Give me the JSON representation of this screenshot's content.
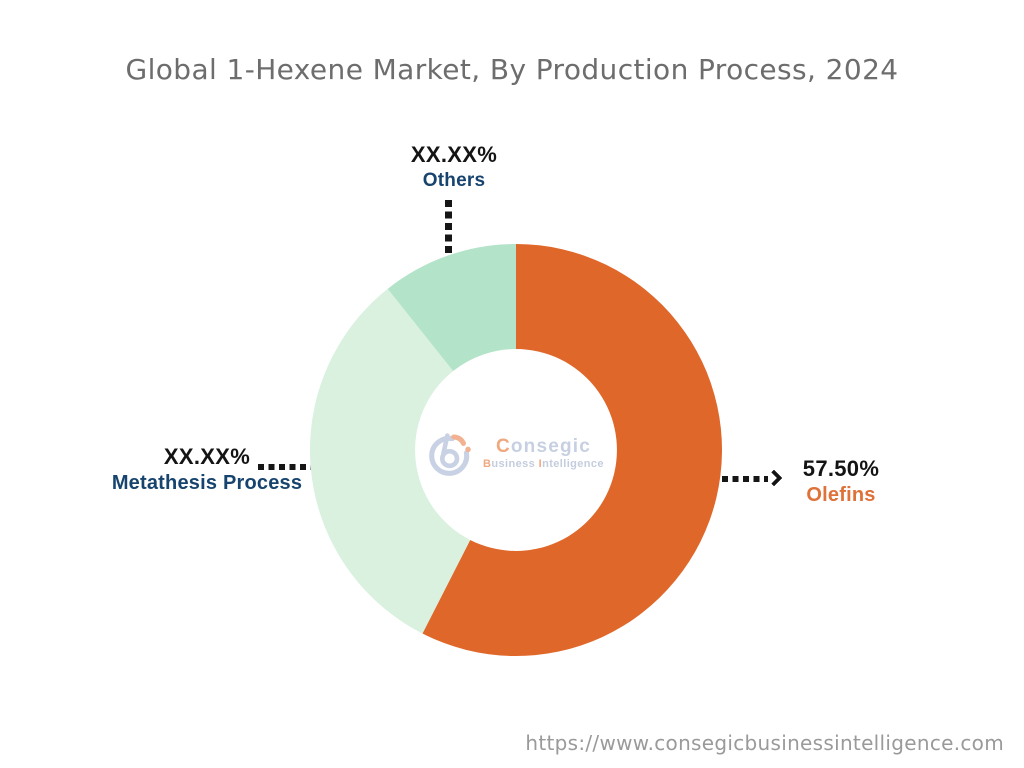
{
  "title": "Global 1-Hexene Market, By Production Process, 2024",
  "footer_url": "https://www.consegicbusinessintelligence.com",
  "logo": {
    "brand_first": "C",
    "brand_rest": "onsegic",
    "sub_first": "B",
    "sub_mid": "usiness ",
    "sub_second": "I",
    "sub_rest": "ntelligence"
  },
  "chart_data": {
    "type": "pie",
    "variant": "donut",
    "title": "Global 1-Hexene Market, By Production Process, 2024",
    "start_angle_deg": 0,
    "direction": "clockwise",
    "inner_radius_ratio": 0.49,
    "legend": "none",
    "segments": [
      {
        "label": "Olefins",
        "value": 57.5,
        "display_value": "57.50%",
        "color": "#E0672A",
        "label_color": "#DE7238"
      },
      {
        "label": "Metathesis Process",
        "value": 31.8,
        "display_value": "XX.XX%",
        "color": "#D9F1DE",
        "label_color": "#17446F"
      },
      {
        "label": "Others",
        "value": 10.7,
        "display_value": "XX.XX%",
        "color": "#B3E3C8",
        "label_color": "#17446F"
      }
    ]
  }
}
